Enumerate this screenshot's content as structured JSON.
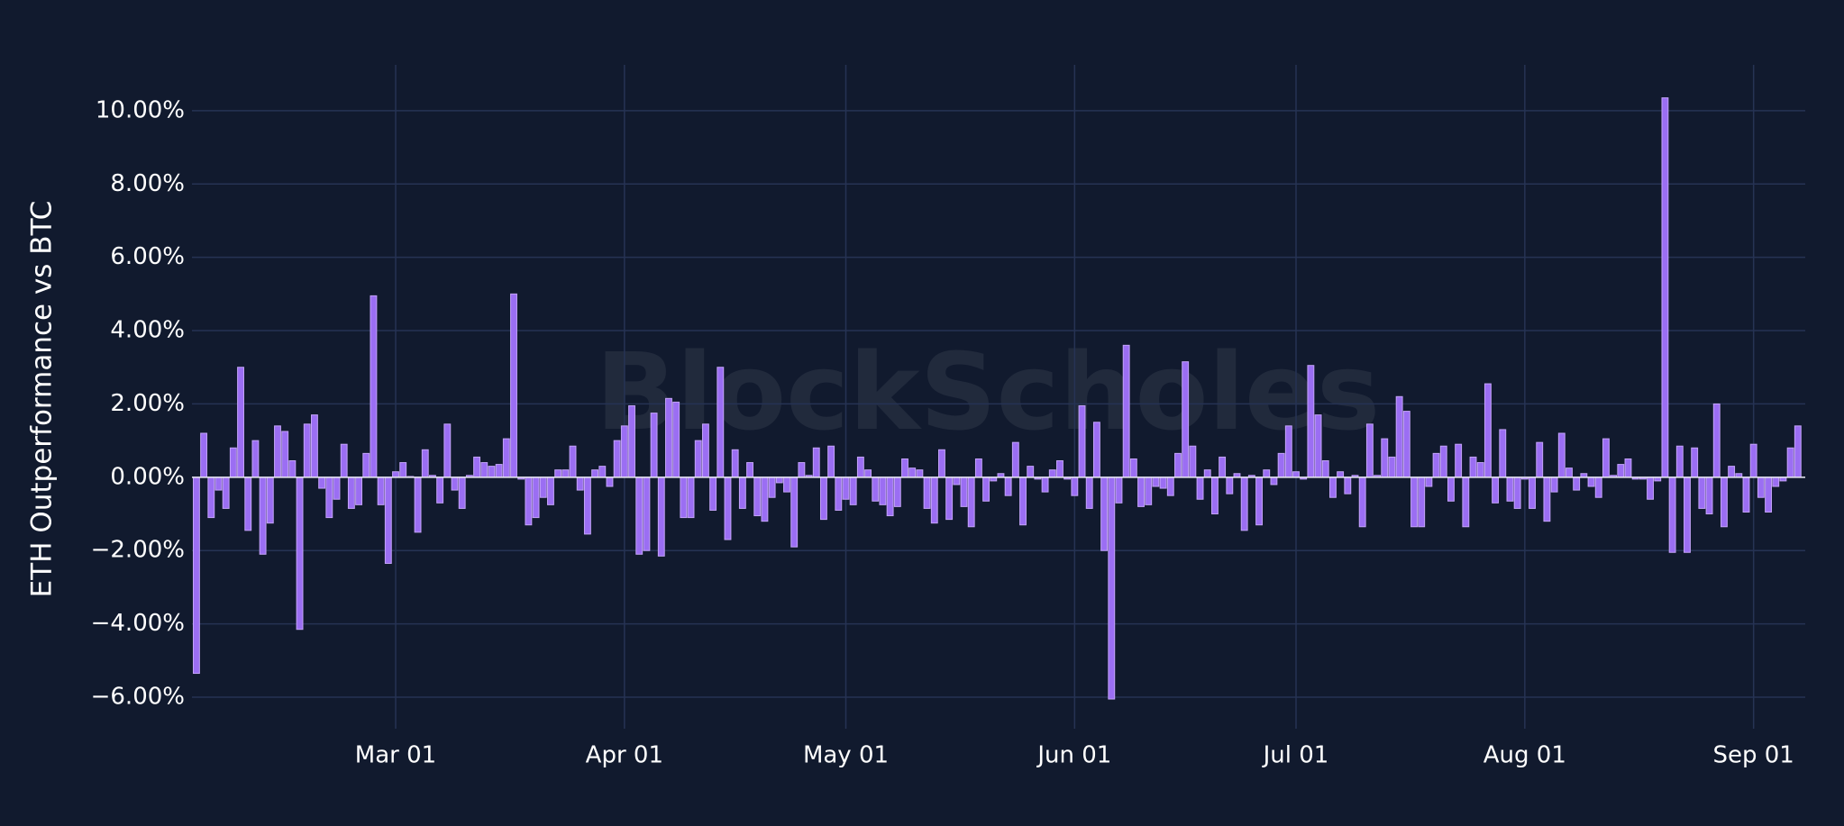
{
  "chart_data": {
    "type": "bar",
    "ylabel": "ETH Outperformance vs BTC",
    "watermark": "BlockScholes",
    "x": [
      "Feb 03",
      "Feb 04",
      "Feb 05",
      "Feb 06",
      "Feb 07",
      "Feb 08",
      "Feb 09",
      "Feb 10",
      "Feb 11",
      "Feb 12",
      "Feb 13",
      "Feb 14",
      "Feb 15",
      "Feb 16",
      "Feb 17",
      "Feb 18",
      "Feb 19",
      "Feb 20",
      "Feb 21",
      "Feb 22",
      "Feb 23",
      "Feb 24",
      "Feb 25",
      "Feb 26",
      "Feb 27",
      "Feb 28",
      "Feb 29",
      "Mar 01",
      "Mar 02",
      "Mar 03",
      "Mar 04",
      "Mar 05",
      "Mar 06",
      "Mar 07",
      "Mar 08",
      "Mar 09",
      "Mar 10",
      "Mar 11",
      "Mar 12",
      "Mar 13",
      "Mar 14",
      "Mar 15",
      "Mar 16",
      "Mar 17",
      "Mar 18",
      "Mar 19",
      "Mar 20",
      "Mar 21",
      "Mar 22",
      "Mar 23",
      "Mar 24",
      "Mar 25",
      "Mar 26",
      "Mar 27",
      "Mar 28",
      "Mar 29",
      "Mar 30",
      "Mar 31",
      "Apr 01",
      "Apr 02",
      "Apr 03",
      "Apr 04",
      "Apr 05",
      "Apr 06",
      "Apr 07",
      "Apr 08",
      "Apr 09",
      "Apr 10",
      "Apr 11",
      "Apr 12",
      "Apr 13",
      "Apr 14",
      "Apr 15",
      "Apr 16",
      "Apr 17",
      "Apr 18",
      "Apr 19",
      "Apr 20",
      "Apr 21",
      "Apr 22",
      "Apr 23",
      "Apr 24",
      "Apr 25",
      "Apr 26",
      "Apr 27",
      "Apr 28",
      "Apr 29",
      "Apr 30",
      "May 01",
      "May 02",
      "May 03",
      "May 04",
      "May 05",
      "May 06",
      "May 07",
      "May 08",
      "May 09",
      "May 10",
      "May 11",
      "May 12",
      "May 13",
      "May 14",
      "May 15",
      "May 16",
      "May 17",
      "May 18",
      "May 19",
      "May 20",
      "May 21",
      "May 22",
      "May 23",
      "May 24",
      "May 25",
      "May 26",
      "May 27",
      "May 28",
      "May 29",
      "May 30",
      "May 31",
      "Jun 01",
      "Jun 02",
      "Jun 03",
      "Jun 04",
      "Jun 05",
      "Jun 06",
      "Jun 07",
      "Jun 08",
      "Jun 09",
      "Jun 10",
      "Jun 11",
      "Jun 12",
      "Jun 13",
      "Jun 14",
      "Jun 15",
      "Jun 16",
      "Jun 17",
      "Jun 18",
      "Jun 19",
      "Jun 20",
      "Jun 21",
      "Jun 22",
      "Jun 23",
      "Jun 24",
      "Jun 25",
      "Jun 26",
      "Jun 27",
      "Jun 28",
      "Jun 29",
      "Jun 30",
      "Jul 01",
      "Jul 02",
      "Jul 03",
      "Jul 04",
      "Jul 05",
      "Jul 06",
      "Jul 07",
      "Jul 08",
      "Jul 09",
      "Jul 10",
      "Jul 11",
      "Jul 12",
      "Jul 13",
      "Jul 14",
      "Jul 15",
      "Jul 16",
      "Jul 17",
      "Jul 18",
      "Jul 19",
      "Jul 20",
      "Jul 21",
      "Jul 22",
      "Jul 23",
      "Jul 24",
      "Jul 25",
      "Jul 26",
      "Jul 27",
      "Jul 28",
      "Jul 29",
      "Jul 30",
      "Jul 31",
      "Aug 01",
      "Aug 02",
      "Aug 03",
      "Aug 04",
      "Aug 05",
      "Aug 06",
      "Aug 07",
      "Aug 08",
      "Aug 09",
      "Aug 10",
      "Aug 11",
      "Aug 12",
      "Aug 13",
      "Aug 14",
      "Aug 15",
      "Aug 16",
      "Aug 17",
      "Aug 18",
      "Aug 19",
      "Aug 20",
      "Aug 21",
      "Aug 22",
      "Aug 23",
      "Aug 24",
      "Aug 25",
      "Aug 26",
      "Aug 27",
      "Aug 28",
      "Aug 29",
      "Aug 30",
      "Aug 31",
      "Sep 01",
      "Sep 02",
      "Sep 03",
      "Sep 04",
      "Sep 05",
      "Sep 06",
      "Sep 07"
    ],
    "values": [
      -5.35,
      1.2,
      -1.1,
      -0.35,
      -0.85,
      0.8,
      3.0,
      -1.45,
      1.0,
      -2.1,
      -1.25,
      1.4,
      1.25,
      0.45,
      -4.15,
      1.45,
      1.7,
      -0.3,
      -1.1,
      -0.6,
      0.9,
      -0.85,
      -0.75,
      0.65,
      4.95,
      -0.75,
      -2.35,
      0.15,
      0.4,
      0.02,
      -1.5,
      0.75,
      0.05,
      -0.7,
      1.45,
      -0.35,
      -0.85,
      0.05,
      0.55,
      0.4,
      0.3,
      0.35,
      1.05,
      5.0,
      -0.05,
      -1.3,
      -1.1,
      -0.55,
      -0.75,
      0.2,
      0.2,
      0.85,
      -0.35,
      -1.55,
      0.2,
      0.3,
      -0.25,
      1.0,
      1.4,
      1.95,
      -2.1,
      -2.0,
      1.75,
      -2.15,
      2.15,
      2.05,
      -1.1,
      -1.1,
      1.0,
      1.45,
      -0.9,
      3.0,
      -1.7,
      0.75,
      -0.85,
      0.4,
      -1.05,
      -1.2,
      -0.55,
      -0.15,
      -0.4,
      -1.9,
      0.4,
      0.05,
      0.8,
      -1.15,
      0.85,
      -0.9,
      -0.6,
      -0.75,
      0.55,
      0.2,
      -0.65,
      -0.75,
      -1.05,
      -0.8,
      0.5,
      0.25,
      0.2,
      -0.85,
      -1.25,
      0.75,
      -1.15,
      -0.2,
      -0.8,
      -1.35,
      0.5,
      -0.65,
      -0.1,
      0.1,
      -0.5,
      0.95,
      -1.3,
      0.3,
      -0.05,
      -0.4,
      0.2,
      0.45,
      -0.05,
      -0.5,
      1.95,
      -0.85,
      1.5,
      -2.0,
      -6.05,
      -0.7,
      3.6,
      0.5,
      -0.8,
      -0.75,
      -0.25,
      -0.3,
      -0.5,
      0.65,
      3.15,
      0.85,
      -0.6,
      0.2,
      -1.0,
      0.55,
      -0.45,
      0.1,
      -1.45,
      0.05,
      -1.3,
      0.2,
      -0.2,
      0.65,
      1.4,
      0.15,
      -0.05,
      3.05,
      1.7,
      0.45,
      -0.55,
      0.15,
      -0.45,
      0.05,
      -1.35,
      1.45,
      0.05,
      1.05,
      0.55,
      2.2,
      1.8,
      -1.35,
      -1.35,
      -0.25,
      0.65,
      0.85,
      -0.65,
      0.9,
      -1.35,
      0.55,
      0.4,
      2.55,
      -0.7,
      1.3,
      -0.65,
      -0.85,
      -0.05,
      -0.85,
      0.95,
      -1.2,
      -0.4,
      1.2,
      0.25,
      -0.35,
      0.1,
      -0.25,
      -0.55,
      1.05,
      0.05,
      0.35,
      0.5,
      -0.05,
      -0.05,
      -0.6,
      -0.1,
      10.35,
      -2.05,
      0.85,
      -2.05,
      0.8,
      -0.85,
      -1.0,
      2.0,
      -1.35,
      0.3,
      0.1,
      -0.95,
      0.9,
      -0.55,
      -0.95,
      -0.25,
      -0.1,
      0.8,
      1.4
    ],
    "color": "#9b6ef3",
    "ylim": [
      -6.86,
      11.25
    ],
    "yticks": [
      {
        "value": -6,
        "label": "−6.00%"
      },
      {
        "value": -4,
        "label": "−4.00%"
      },
      {
        "value": -2,
        "label": "−2.00%"
      },
      {
        "value": 0,
        "label": "0.00%"
      },
      {
        "value": 2,
        "label": "2.00%"
      },
      {
        "value": 4,
        "label": "4.00%"
      },
      {
        "value": 6,
        "label": "6.00%"
      },
      {
        "value": 8,
        "label": "8.00%"
      },
      {
        "value": 10,
        "label": "10.00%"
      }
    ],
    "xticks": [
      "Mar 01",
      "Apr 01",
      "May 01",
      "Jun 01",
      "Jul 01",
      "Aug 01",
      "Sep 01"
    ],
    "grid": true,
    "zeroline": true
  }
}
